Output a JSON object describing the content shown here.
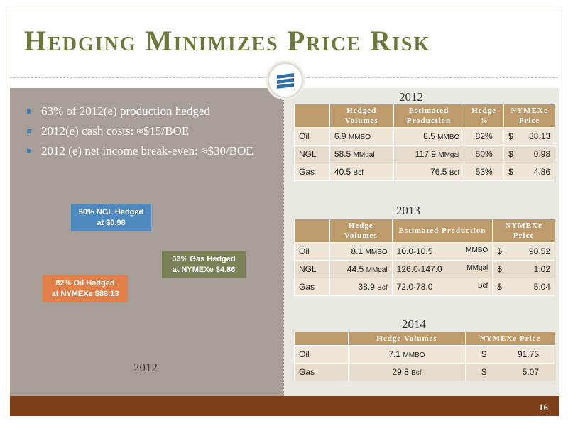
{
  "title": "Hedging Minimizes Price Risk",
  "page_number": "16",
  "bullets": [
    "63% of 2012(e) production hedged",
    "2012(e) cash costs: ≈$15/BOE",
    "2012 (e) net income break-even: ≈$30/BOE"
  ],
  "callouts": {
    "ngl": [
      "50% NGL Hedged",
      "at $0.98"
    ],
    "gas": [
      "53% Gas Hedged",
      "at NYMEXe $4.86"
    ],
    "oil": [
      "82% Oil Hedged",
      "at NYMEXe $88.13"
    ]
  },
  "left_year": "2012",
  "colors": {
    "title": "#6b7a3a",
    "left_panel": "#a69e97",
    "bar": "#7f3f18",
    "header": "#bd9b6b",
    "ngl": "#4e8ac0",
    "gas": "#7b8157",
    "oil": "#e27e47"
  },
  "tables": {
    "t2012": {
      "year": "2012",
      "headers": [
        "",
        "Hedged Volumes",
        "Estimated Production",
        "Hedge %",
        "NYMEXe Price"
      ],
      "rows": [
        {
          "label": "Oil",
          "vol": "6.9",
          "vol_unit": "MMBO",
          "prod": "8.5",
          "prod_unit": "MMBO",
          "pct": "82%",
          "price": "88.13"
        },
        {
          "label": "NGL",
          "vol": "58.5",
          "vol_unit": "MMgal",
          "prod": "117.9",
          "prod_unit": "MMgal",
          "pct": "50%",
          "price": "0.98"
        },
        {
          "label": "Gas",
          "vol": "40.5",
          "vol_unit": "Bcf",
          "prod": "76.5",
          "prod_unit": "Bcf",
          "pct": "53%",
          "price": "4.86"
        }
      ]
    },
    "t2013": {
      "year": "2013",
      "headers": [
        "",
        "Hedge Volumes",
        "Estimated Production",
        "NYMEXe Price"
      ],
      "rows": [
        {
          "label": "Oil",
          "vol": "8.1",
          "vol_unit": "MMBO",
          "prod": "10.0-10.5",
          "prod_unit": "MMBO",
          "price": "90.52"
        },
        {
          "label": "NGL",
          "vol": "44.5",
          "vol_unit": "MMgal",
          "prod": "126.0-147.0",
          "prod_unit": "MMgal",
          "price": "1.02"
        },
        {
          "label": "Gas",
          "vol": "38.9",
          "vol_unit": "Bcf",
          "prod": "72.0-78.0",
          "prod_unit": "Bcf",
          "price": "5.04"
        }
      ]
    },
    "t2014": {
      "year": "2014",
      "headers": [
        "",
        "Hedge Volumes",
        "NYMEXe Price"
      ],
      "rows": [
        {
          "label": "Oil",
          "vol": "7.1",
          "vol_unit": "MMBO",
          "price": "91.75"
        },
        {
          "label": "Gas",
          "vol": "29.8",
          "vol_unit": "Bcf",
          "price": "5.07"
        }
      ]
    }
  },
  "currency": "$"
}
